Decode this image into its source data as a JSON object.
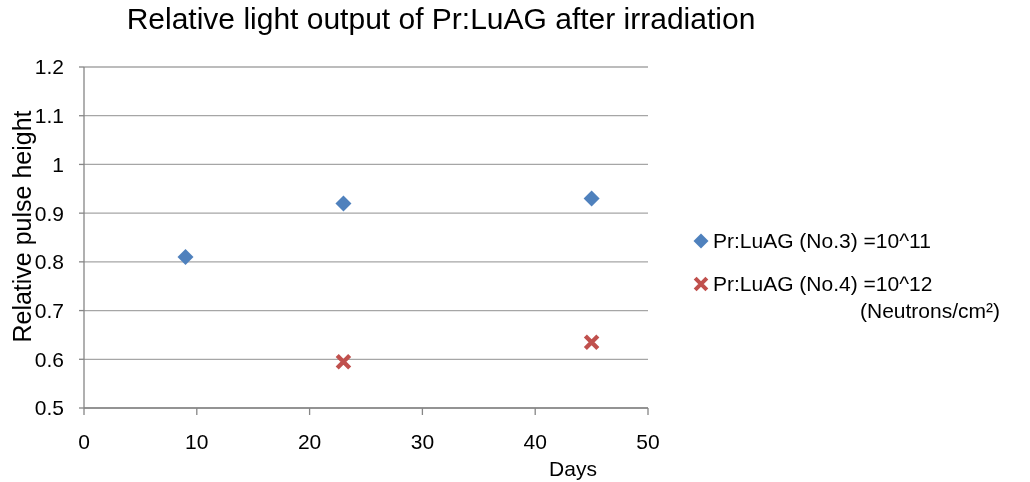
{
  "chart_data": {
    "type": "scatter",
    "title": "Relative light output of Pr:LuAG after irradiation",
    "xlabel": "Days",
    "ylabel": "Relative pulse height",
    "series": [
      {
        "name": "Pr:LuAG (No.3) =10^11",
        "color": "#4f81bd",
        "marker": "diamond",
        "x": [
          9,
          23,
          45
        ],
        "values": [
          0.81,
          0.92,
          0.93
        ]
      },
      {
        "name": "Pr:LuAG (No.4) =10^12",
        "color": "#c0504d",
        "marker": "cross",
        "x": [
          23,
          45
        ],
        "values": [
          0.595,
          0.635
        ]
      }
    ],
    "xlim": [
      0,
      50
    ],
    "xticks": [
      0,
      10,
      20,
      30,
      40,
      50
    ],
    "ylim": [
      0.5,
      1.2
    ],
    "yticks": [
      0.5,
      0.6,
      0.7,
      0.8,
      0.9,
      1,
      1.1,
      1.2
    ],
    "grid": "y",
    "legend": "right",
    "annotations": [
      "(Neutrons/cm²)"
    ]
  }
}
